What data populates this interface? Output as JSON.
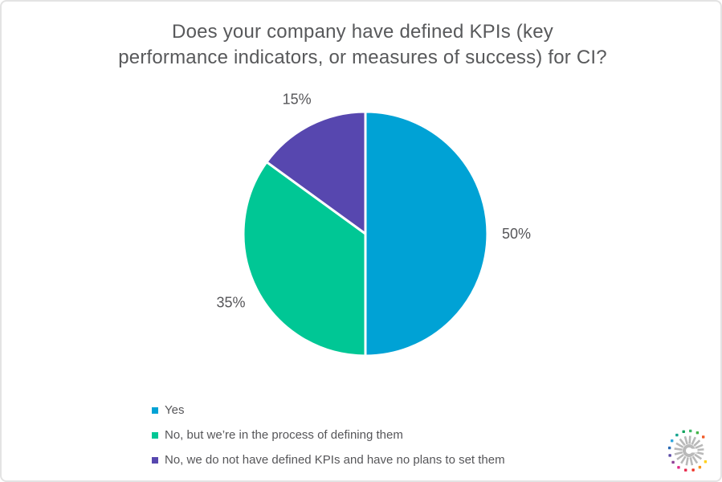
{
  "chart_data": {
    "type": "pie",
    "title": "Does your company have defined KPIs (key performance indicators, or measures of success) for CI?",
    "title_lines": [
      "Does your company have defined KPIs (key",
      "performance indicators, or measures of success) for CI?"
    ],
    "slices": [
      {
        "label": "Yes",
        "value": 50,
        "value_label": "50%",
        "color": "#00A2D5"
      },
      {
        "label": "No, but we’re in the process of defining them",
        "value": 35,
        "value_label": "35%",
        "color": "#00C795"
      },
      {
        "label": "No, we do not have defined KPIs and have no plans to set them",
        "value": 15,
        "value_label": "15%",
        "color": "#5747AF"
      }
    ],
    "start_angle_deg": 0,
    "direction": "clockwise",
    "separator_color": "#ffffff",
    "data_labels": "percent-outside",
    "legend_position": "bottom-left"
  },
  "styles": {
    "background": "#ffffff",
    "canvas_border_color": "#e3e3e3",
    "title_color": "#58595b",
    "value_label_color": "#565659",
    "legend_text_color": "#565659"
  },
  "logo": {
    "name": "starburst-logo",
    "ray_color": "#b9b9b9",
    "center_glyph": "C",
    "dots": [
      {
        "angle": 4,
        "color": "#3BB966"
      },
      {
        "angle": 25,
        "color": "#45B549"
      },
      {
        "angle": 46,
        "color": "#F05A28"
      },
      {
        "angle": 124,
        "color": "#FFD21E"
      },
      {
        "angle": 147,
        "color": "#F7941D"
      },
      {
        "angle": 168,
        "color": "#EE3124"
      },
      {
        "angle": 190,
        "color": "#E8274B"
      },
      {
        "angle": 212,
        "color": "#DF2788"
      },
      {
        "angle": 234,
        "color": "#8F3F97"
      },
      {
        "angle": 256,
        "color": "#5B4AA5"
      },
      {
        "angle": 278,
        "color": "#2D6CB5"
      },
      {
        "angle": 300,
        "color": "#31A6DD"
      },
      {
        "angle": 322,
        "color": "#17A48F"
      },
      {
        "angle": 344,
        "color": "#13A45E"
      }
    ],
    "extra_ray_angles": [
      67,
      85,
      103
    ]
  }
}
